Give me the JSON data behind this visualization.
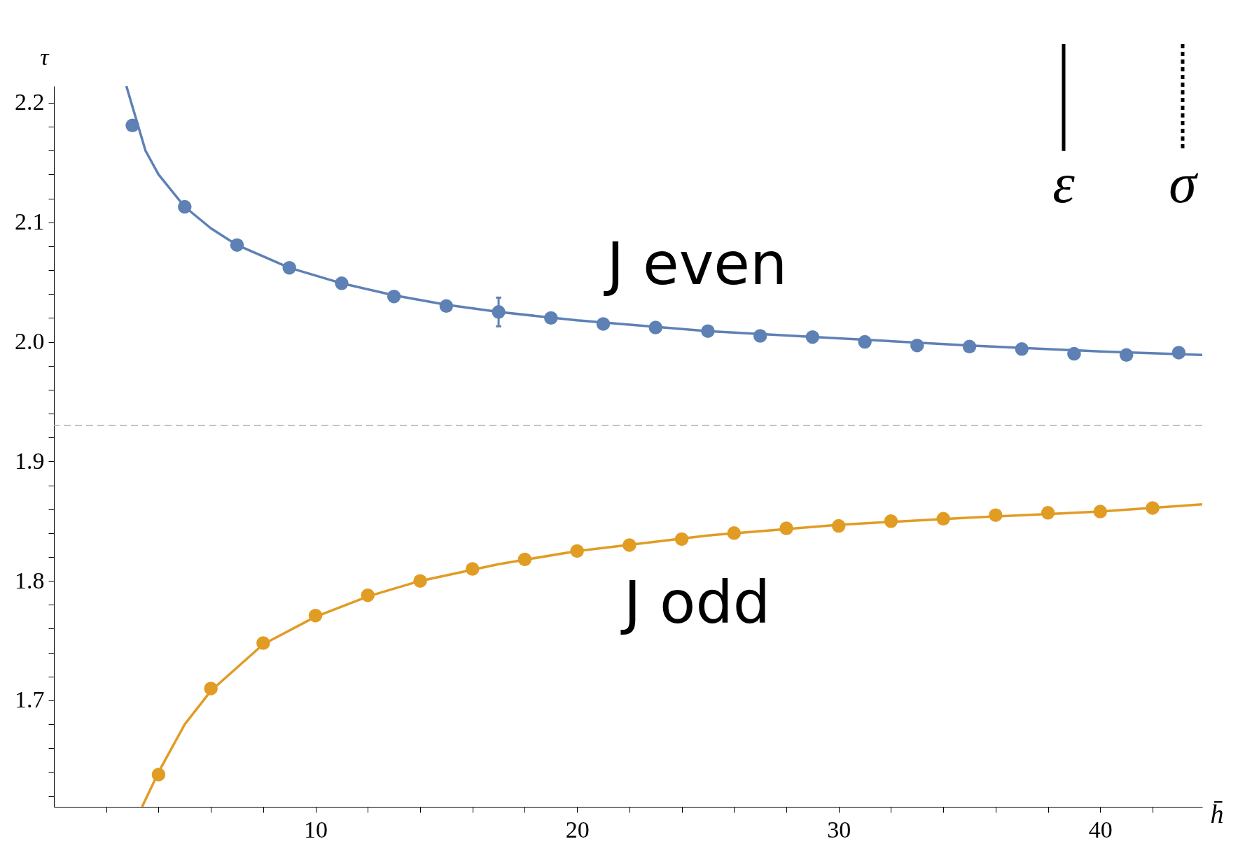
{
  "chart_data": {
    "type": "scatter",
    "xlabel": "h̄",
    "ylabel": "τ",
    "xlim": [
      0,
      43.9
    ],
    "ylim": [
      1.611,
      2.214
    ],
    "xticks": [
      {
        "value": 2,
        "label": null
      },
      {
        "value": 4,
        "label": null
      },
      {
        "value": 6,
        "label": null
      },
      {
        "value": 8,
        "label": null
      },
      10,
      {
        "value": 12,
        "label": null
      },
      {
        "value": 14,
        "label": null
      },
      {
        "value": 16,
        "label": null
      },
      {
        "value": 18,
        "label": null
      },
      20,
      {
        "value": 22,
        "label": null
      },
      {
        "value": 24,
        "label": null
      },
      {
        "value": 26,
        "label": null
      },
      {
        "value": 28,
        "label": null
      },
      30,
      {
        "value": 32,
        "label": null
      },
      {
        "value": 34,
        "label": null
      },
      {
        "value": 36,
        "label": null
      },
      {
        "value": 38,
        "label": null
      },
      40,
      {
        "value": 42,
        "label": null
      }
    ],
    "yticks": [
      {
        "value": 1.62,
        "label": null
      },
      {
        "value": 1.64,
        "label": null
      },
      {
        "value": 1.66,
        "label": null
      },
      {
        "value": 1.68,
        "label": null
      },
      1.7,
      {
        "value": 1.72,
        "label": null
      },
      {
        "value": 1.74,
        "label": null
      },
      {
        "value": 1.76,
        "label": null
      },
      {
        "value": 1.78,
        "label": null
      },
      1.8,
      {
        "value": 1.82,
        "label": null
      },
      {
        "value": 1.84,
        "label": null
      },
      {
        "value": 1.86,
        "label": null
      },
      {
        "value": 1.88,
        "label": null
      },
      1.9,
      {
        "value": 1.92,
        "label": null
      },
      {
        "value": 1.94,
        "label": null
      },
      {
        "value": 1.96,
        "label": null
      },
      {
        "value": 1.98,
        "label": null
      },
      {
        "value": 2,
        "label": "2.0"
      },
      {
        "value": 2.02,
        "label": null
      },
      {
        "value": 2.04,
        "label": null
      },
      {
        "value": 2.06,
        "label": null
      },
      {
        "value": 2.08,
        "label": null
      },
      2.1,
      {
        "value": 2.12,
        "label": null
      },
      {
        "value": 2.14,
        "label": null
      },
      {
        "value": 2.16,
        "label": null
      },
      {
        "value": 2.18,
        "label": null
      },
      2.2
    ],
    "line_style": "solid",
    "series": [
      {
        "type": "scatter",
        "marker": "circle",
        "color": "#5e81b5",
        "x": [
          3,
          5,
          7,
          9,
          11,
          13,
          15,
          17,
          19,
          21,
          23,
          25,
          27,
          29,
          31,
          33,
          35,
          37,
          39,
          41,
          43
        ],
        "values": [
          2.181,
          2.113,
          2.081,
          2.062,
          2.049,
          2.038,
          2.03,
          2.025,
          2.02,
          2.015,
          2.012,
          2.009,
          2.005,
          2.004,
          2.0,
          1.997,
          1.996,
          1.994,
          1.99,
          1.989,
          1.991
        ],
        "errors": [
          null,
          null,
          null,
          null,
          null,
          null,
          null,
          0.012,
          null,
          null,
          null,
          null,
          null,
          null,
          null,
          null,
          null,
          null,
          null,
          null,
          null
        ]
      },
      {
        "type": "scatter",
        "marker": "circle",
        "color": "#e19c24",
        "x": [
          4,
          6,
          8,
          10,
          12,
          14,
          16,
          18,
          20,
          22,
          24,
          26,
          28,
          30,
          32,
          34,
          36,
          38,
          40,
          42
        ],
        "values": [
          1.638,
          1.71,
          1.748,
          1.771,
          1.788,
          1.8,
          1.81,
          1.818,
          1.825,
          1.83,
          1.835,
          1.84,
          1.844,
          1.846,
          1.85,
          1.852,
          1.855,
          1.857,
          1.858,
          1.861
        ]
      },
      {
        "type": "line",
        "marker": "none",
        "color": "#5e81b5",
        "x": [
          2.77,
          3.5,
          4,
          5,
          6,
          7,
          9,
          11,
          13,
          15,
          17,
          20,
          25,
          30,
          35,
          40,
          43.9
        ],
        "values": [
          2.214,
          2.16,
          2.14,
          2.113,
          2.095,
          2.081,
          2.062,
          2.049,
          2.039,
          2.031,
          2.025,
          2.018,
          2.009,
          2.003,
          1.997,
          1.992,
          1.989
        ]
      },
      {
        "type": "line",
        "marker": "none",
        "color": "#e19c24",
        "x": [
          3.37,
          4,
          5,
          6,
          8,
          10,
          12,
          14,
          17,
          20,
          25,
          30,
          35,
          40,
          43.9
        ],
        "values": [
          1.611,
          1.64,
          1.68,
          1.708,
          1.747,
          1.77,
          1.787,
          1.8,
          1.814,
          1.825,
          1.838,
          1.847,
          1.853,
          1.858,
          1.864
        ]
      }
    ],
    "ref_lines": [
      {
        "axis": "y",
        "value": 1.93,
        "color": "#b0b0b0",
        "line_style": "dashed"
      },
      {
        "axis": "x",
        "value": 38.6,
        "label": "ε",
        "color": "#000000",
        "line_style": "solid"
      },
      {
        "axis": "x",
        "value": 43.15,
        "label": "σ",
        "color": "#000000",
        "line_style": "dotted"
      }
    ],
    "annotations": [
      "J even",
      "J odd"
    ]
  }
}
